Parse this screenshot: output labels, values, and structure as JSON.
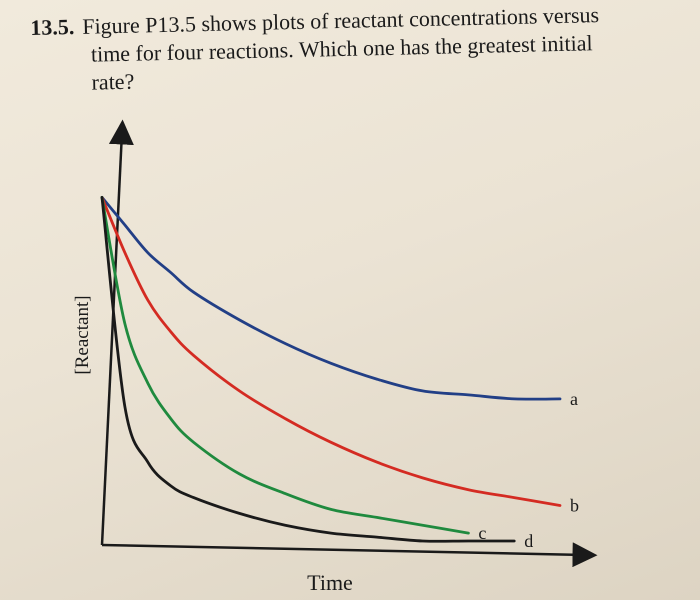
{
  "problem": {
    "number": "13.5.",
    "lines": [
      "Figure P13.5 shows plots of reactant concentrations versus",
      "time for four reactions. Which one has the greatest initial",
      "rate?"
    ]
  },
  "chart_data": {
    "type": "line",
    "title": "",
    "xlabel": "Time",
    "ylabel": "[Reactant]",
    "xlim": [
      0,
      1
    ],
    "ylim": [
      0,
      1
    ],
    "x": [
      0,
      0.05,
      0.1,
      0.15,
      0.2,
      0.3,
      0.4,
      0.5,
      0.6,
      0.7,
      0.8,
      0.9,
      1.0
    ],
    "series": [
      {
        "name": "a",
        "color": "#223f86",
        "values": [
          0.88,
          0.81,
          0.74,
          0.69,
          0.64,
          0.57,
          0.51,
          0.46,
          0.42,
          0.39,
          0.38,
          0.37,
          0.37
        ]
      },
      {
        "name": "b",
        "color": "#d42b22",
        "values": [
          0.88,
          0.74,
          0.62,
          0.54,
          0.48,
          0.39,
          0.32,
          0.26,
          0.21,
          0.17,
          0.14,
          0.12,
          0.1
        ]
      },
      {
        "name": "c",
        "color": "#1f8a3e",
        "values": [
          0.88,
          0.56,
          0.41,
          0.32,
          0.26,
          0.18,
          0.13,
          0.09,
          0.07,
          0.05,
          0.03,
          null,
          null
        ]
      },
      {
        "name": "d",
        "color": "#1a1a1a",
        "values": [
          0.88,
          0.35,
          0.21,
          0.15,
          0.12,
          0.08,
          0.05,
          0.03,
          0.02,
          0.01,
          0.01,
          0.01,
          null
        ]
      }
    ],
    "legend": "inline labels at line ends",
    "grid": false
  }
}
